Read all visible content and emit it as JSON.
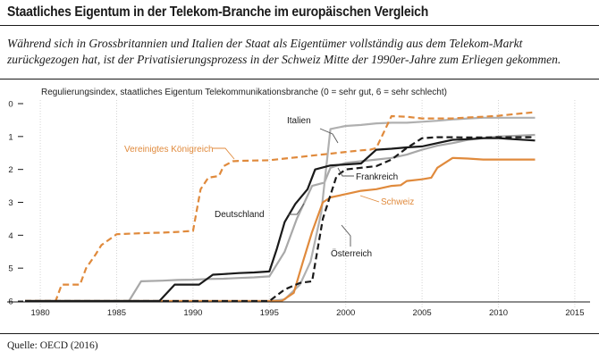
{
  "header": {
    "title": "Staatliches Eigentum in der Telekom-Branche im europäischen Vergleich",
    "subtitle": "Während sich in Grossbritannien und Italien der Staat als Eigentümer vollständig aus dem Telekom-Markt zurückgezogen hat, ist der Privatisierungsprozess in der Schweiz Mitte der 1990er-Jahre zum Erliegen gekommen."
  },
  "footer": {
    "source": "Quelle: OECD (2016)"
  },
  "chart_data": {
    "type": "line",
    "ylabel": "Regulierungsindex, staatliches Eigentum Telekommunikationsbranche (0 = sehr gut, 6 = sehr schlecht)",
    "xlim": [
      1979,
      2016
    ],
    "ylim": [
      0,
      6
    ],
    "y_inverted": true,
    "x_ticks": [
      "1980",
      "1985",
      "1990",
      "1995",
      "2000",
      "2005",
      "2010",
      "2015"
    ],
    "y_ticks": [
      "0",
      "1",
      "2",
      "3",
      "4",
      "5",
      "6"
    ],
    "grid": "vertical",
    "series": [
      {
        "name": "Vereinigtes Königreich",
        "color": "#e08a3c",
        "dash": "dashed",
        "label_color": "#e08a3c",
        "x": [
          1979,
          1980,
          1981,
          1981.4,
          1982,
          1982.6,
          1983,
          1983.6,
          1984,
          1985,
          1986,
          1987,
          1988,
          1989,
          1989.6,
          1990,
          1990.5,
          1991,
          1991.7,
          1992,
          1992.6,
          1993,
          1994,
          1995,
          1996,
          1997,
          1998,
          1999,
          2000,
          2001,
          2001.6,
          2002,
          2003,
          2004,
          2005,
          2006,
          2007,
          2008,
          2009,
          2010,
          2011,
          2012.4
        ],
        "y": [
          6,
          6,
          6,
          5.5,
          5.5,
          5.5,
          5.0,
          4.6,
          4.3,
          3.97,
          3.95,
          3.93,
          3.92,
          3.9,
          3.88,
          3.87,
          2.6,
          2.25,
          2.2,
          1.9,
          1.75,
          1.74,
          1.73,
          1.72,
          1.67,
          1.62,
          1.57,
          1.52,
          1.47,
          1.42,
          1.4,
          1.35,
          0.38,
          0.4,
          0.45,
          0.45,
          0.45,
          0.42,
          0.4,
          0.37,
          0.32,
          0.26
        ]
      },
      {
        "name": "Italien",
        "color": "#b0b0b0",
        "dash": "solid",
        "label_color": "#1a1a1a",
        "x": [
          1979,
          1995,
          1996,
          1997,
          1997.7,
          1998.4,
          1999,
          2000,
          2001,
          2002,
          2003,
          2004,
          2005,
          2006,
          2007,
          2008,
          2009,
          2010,
          2011,
          2012.4
        ],
        "y": [
          6,
          6,
          5.95,
          5.5,
          4.8,
          3.3,
          0.77,
          0.68,
          0.65,
          0.6,
          0.58,
          0.58,
          0.55,
          0.52,
          0.48,
          0.45,
          0.43,
          0.43,
          0.43,
          0.43
        ]
      },
      {
        "name": "Frankreich",
        "color": "#1a1a1a",
        "dash": "solid",
        "label_color": "#1a1a1a",
        "x": [
          1979,
          1987.8,
          1988.8,
          1989.6,
          1990.4,
          1991.3,
          1992,
          1993,
          1994,
          1995,
          1995.5,
          1996,
          1996.7,
          1997.5,
          1998,
          1999,
          2000,
          2001,
          2002,
          2003,
          2004,
          2005,
          2006,
          2007,
          2008,
          2009,
          2010,
          2011,
          2012.4
        ],
        "y": [
          6,
          6,
          5.5,
          5.5,
          5.5,
          5.2,
          5.18,
          5.15,
          5.13,
          5.1,
          4.4,
          3.6,
          3.05,
          2.6,
          2.0,
          1.88,
          1.85,
          1.82,
          1.4,
          1.37,
          1.33,
          1.3,
          1.2,
          1.1,
          1.08,
          1.05,
          1.05,
          1.08,
          1.12
        ]
      },
      {
        "name": "Deutschland",
        "color": "#a8a8a8",
        "dash": "solid",
        "label_color": "#1a1a1a",
        "x": [
          1979,
          1985.8,
          1986.6,
          1988,
          1989,
          1990,
          1991,
          1992,
          1993,
          1994,
          1995,
          1996,
          1996.8,
          1997.8,
          1998.6,
          1999,
          2000,
          2001,
          2002,
          2003,
          2004,
          2005,
          2006,
          2007,
          2008,
          2009,
          2010,
          2011,
          2012.4
        ],
        "y": [
          6,
          6,
          5.4,
          5.38,
          5.36,
          5.35,
          5.33,
          5.32,
          5.3,
          5.28,
          5.25,
          4.5,
          3.5,
          2.5,
          2.4,
          1.95,
          1.8,
          1.75,
          1.7,
          1.65,
          1.55,
          1.4,
          1.28,
          1.2,
          1.1,
          1.05,
          1.0,
          0.98,
          0.95
        ]
      },
      {
        "name": "Österreich",
        "color": "#1a1a1a",
        "dash": "dashed",
        "label_color": "#1a1a1a",
        "x": [
          1979,
          1995,
          1996,
          1997,
          1997.8,
          1998.5,
          1999.4,
          2000,
          2001,
          2002,
          2003,
          2004,
          2005,
          2006,
          2007,
          2008,
          2009,
          2010,
          2011,
          2012.4
        ],
        "y": [
          6,
          6,
          5.65,
          5.45,
          5.4,
          3.5,
          2.2,
          2.0,
          1.95,
          1.9,
          1.7,
          1.35,
          1.05,
          1.02,
          1.02,
          1.03,
          1.03,
          1.02,
          1.02,
          1.02
        ]
      },
      {
        "name": "Schweiz",
        "color": "#e08a3c",
        "dash": "solid",
        "label_color": "#e08a3c",
        "x": [
          1979,
          1995,
          1995.8,
          1996.6,
          1997.2,
          1997.8,
          1998.5,
          1999,
          2000,
          2001,
          2002,
          2003,
          2003.6,
          2004,
          2005,
          2005.6,
          2006,
          2007,
          2008,
          2009,
          2010,
          2011,
          2012.4
        ],
        "y": [
          6,
          6,
          6,
          5.75,
          4.8,
          3.9,
          3.0,
          2.85,
          2.75,
          2.65,
          2.6,
          2.5,
          2.48,
          2.35,
          2.3,
          2.25,
          1.95,
          1.65,
          1.67,
          1.7,
          1.7,
          1.7,
          1.7
        ]
      }
    ]
  }
}
